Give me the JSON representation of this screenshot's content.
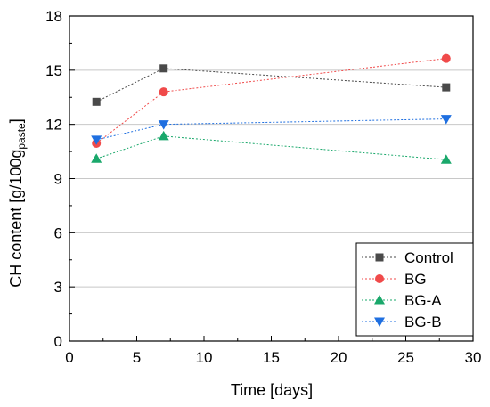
{
  "chart_data": {
    "type": "line",
    "xlabel": "Time [days]",
    "ylabel": {
      "main": "CH content [g/100g",
      "subscript": "paste",
      "close": "]"
    },
    "xlim": [
      0,
      30
    ],
    "ylim": [
      0,
      18
    ],
    "xticks": [
      "0",
      "5",
      "10",
      "15",
      "20",
      "25",
      "30"
    ],
    "yticks": [
      "0",
      "3",
      "6",
      "9",
      "12",
      "15",
      "18"
    ],
    "grid": "horizontal",
    "legend_position": "bottom-right",
    "x": [
      2,
      7,
      28
    ],
    "series": [
      {
        "name": "Control",
        "values": [
          13.25,
          15.1,
          14.05
        ],
        "color": "#4a4a4a",
        "marker": "square"
      },
      {
        "name": "BG",
        "values": [
          10.95,
          13.8,
          15.65
        ],
        "color": "#f04a4a",
        "marker": "circle"
      },
      {
        "name": "BG-A",
        "values": [
          10.1,
          11.35,
          10.05
        ],
        "color": "#1aa86b",
        "marker": "triangle-up"
      },
      {
        "name": "BG-B",
        "values": [
          11.15,
          12.0,
          12.3
        ],
        "color": "#1f6fe0",
        "marker": "triangle-down"
      }
    ]
  }
}
